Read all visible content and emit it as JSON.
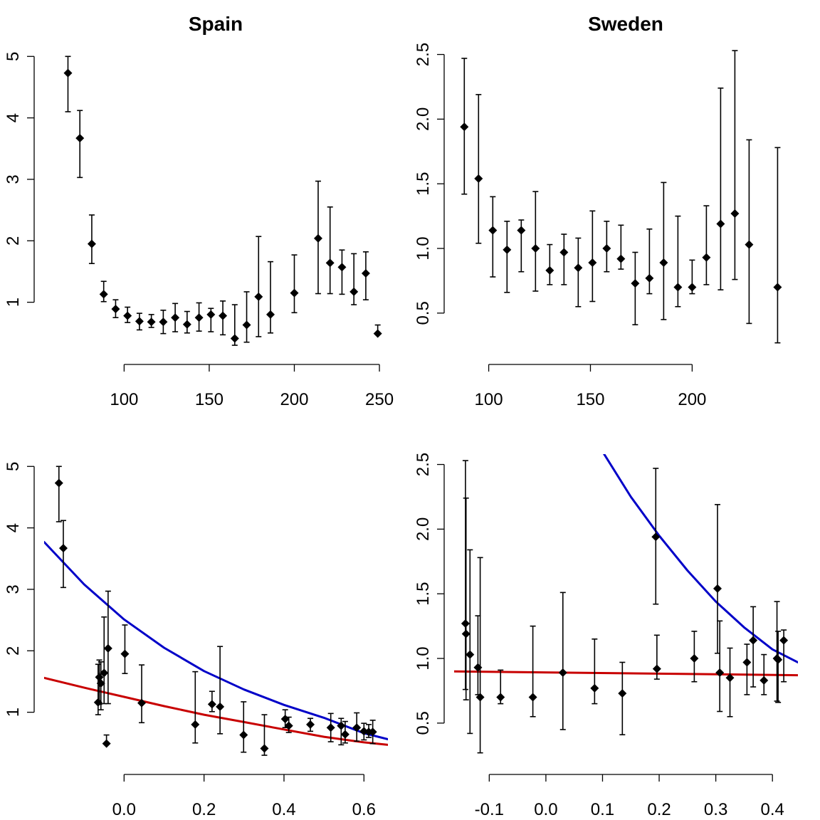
{
  "colors": {
    "blue": "#0000c8",
    "red": "#c80000",
    "points": "#000000"
  },
  "chart_data": [
    {
      "type": "scatter",
      "panel": "top-left",
      "title": "Spain",
      "xlabel": "",
      "ylabel": "",
      "xticks": [
        100,
        150,
        200,
        250
      ],
      "yticks": [
        1,
        2,
        3,
        4,
        5
      ],
      "xlim": [
        53,
        255
      ],
      "ylim": [
        0.15,
        5.2
      ],
      "points": [
        {
          "x": 67,
          "y": 4.73,
          "lo": 4.1,
          "hi": 5.0
        },
        {
          "x": 74,
          "y": 3.67,
          "lo": 3.03,
          "hi": 4.12
        },
        {
          "x": 81,
          "y": 1.95,
          "lo": 1.63,
          "hi": 2.42
        },
        {
          "x": 88,
          "y": 1.13,
          "lo": 1.01,
          "hi": 1.34
        },
        {
          "x": 95,
          "y": 0.89,
          "lo": 0.75,
          "hi": 1.04
        },
        {
          "x": 102,
          "y": 0.78,
          "lo": 0.67,
          "hi": 0.92
        },
        {
          "x": 109,
          "y": 0.69,
          "lo": 0.55,
          "hi": 0.82
        },
        {
          "x": 116,
          "y": 0.68,
          "lo": 0.59,
          "hi": 0.8
        },
        {
          "x": 123,
          "y": 0.68,
          "lo": 0.49,
          "hi": 0.87
        },
        {
          "x": 130,
          "y": 0.75,
          "lo": 0.52,
          "hi": 0.98
        },
        {
          "x": 137,
          "y": 0.64,
          "lo": 0.5,
          "hi": 0.85
        },
        {
          "x": 144,
          "y": 0.75,
          "lo": 0.53,
          "hi": 0.99
        },
        {
          "x": 151,
          "y": 0.8,
          "lo": 0.52,
          "hi": 0.9
        },
        {
          "x": 158,
          "y": 0.78,
          "lo": 0.47,
          "hi": 1.02
        },
        {
          "x": 165,
          "y": 0.41,
          "lo": 0.3,
          "hi": 0.96
        },
        {
          "x": 172,
          "y": 0.63,
          "lo": 0.35,
          "hi": 1.17
        },
        {
          "x": 179,
          "y": 1.09,
          "lo": 0.44,
          "hi": 2.07
        },
        {
          "x": 186,
          "y": 0.8,
          "lo": 0.5,
          "hi": 1.66
        },
        {
          "x": 200,
          "y": 1.15,
          "lo": 0.83,
          "hi": 1.77
        },
        {
          "x": 214,
          "y": 2.04,
          "lo": 1.14,
          "hi": 2.97
        },
        {
          "x": 221,
          "y": 1.64,
          "lo": 1.14,
          "hi": 2.55
        },
        {
          "x": 228,
          "y": 1.57,
          "lo": 1.13,
          "hi": 1.85
        },
        {
          "x": 235,
          "y": 1.17,
          "lo": 0.96,
          "hi": 1.79
        },
        {
          "x": 242,
          "y": 1.47,
          "lo": 1.04,
          "hi": 1.82
        },
        {
          "x": 249,
          "y": 0.49,
          "lo": 0.49,
          "hi": 0.63
        }
      ]
    },
    {
      "type": "scatter",
      "panel": "top-right",
      "title": "Sweden",
      "xlabel": "",
      "ylabel": "",
      "xticks": [
        100,
        150,
        200
      ],
      "yticks": [
        0.5,
        1.0,
        1.5,
        2.0,
        2.5
      ],
      "xlim": [
        83,
        252
      ],
      "ylim": [
        0.18,
        2.58
      ],
      "points": [
        {
          "x": 88,
          "y": 1.94,
          "lo": 1.42,
          "hi": 2.47
        },
        {
          "x": 95,
          "y": 1.54,
          "lo": 1.04,
          "hi": 2.19
        },
        {
          "x": 102,
          "y": 1.14,
          "lo": 0.78,
          "hi": 1.4
        },
        {
          "x": 109,
          "y": 0.99,
          "lo": 0.66,
          "hi": 1.21
        },
        {
          "x": 116,
          "y": 1.14,
          "lo": 0.82,
          "hi": 1.22
        },
        {
          "x": 123,
          "y": 1.0,
          "lo": 0.67,
          "hi": 1.44
        },
        {
          "x": 130,
          "y": 0.83,
          "lo": 0.72,
          "hi": 1.03
        },
        {
          "x": 137,
          "y": 0.97,
          "lo": 0.72,
          "hi": 1.11
        },
        {
          "x": 144,
          "y": 0.85,
          "lo": 0.55,
          "hi": 1.08
        },
        {
          "x": 151,
          "y": 0.89,
          "lo": 0.59,
          "hi": 1.29
        },
        {
          "x": 158,
          "y": 1.0,
          "lo": 0.82,
          "hi": 1.21
        },
        {
          "x": 165,
          "y": 0.92,
          "lo": 0.84,
          "hi": 1.18
        },
        {
          "x": 172,
          "y": 0.73,
          "lo": 0.41,
          "hi": 0.97
        },
        {
          "x": 179,
          "y": 0.77,
          "lo": 0.65,
          "hi": 1.15
        },
        {
          "x": 186,
          "y": 0.89,
          "lo": 0.45,
          "hi": 1.51
        },
        {
          "x": 193,
          "y": 0.7,
          "lo": 0.55,
          "hi": 1.25
        },
        {
          "x": 200,
          "y": 0.7,
          "lo": 0.65,
          "hi": 0.91
        },
        {
          "x": 207,
          "y": 0.93,
          "lo": 0.72,
          "hi": 1.33
        },
        {
          "x": 214,
          "y": 1.19,
          "lo": 0.68,
          "hi": 2.24
        },
        {
          "x": 221,
          "y": 1.27,
          "lo": 0.76,
          "hi": 2.53
        },
        {
          "x": 228,
          "y": 1.03,
          "lo": 0.42,
          "hi": 1.84
        },
        {
          "x": 242,
          "y": 0.7,
          "lo": 0.27,
          "hi": 1.78
        }
      ]
    },
    {
      "type": "scatter",
      "panel": "bottom-left",
      "title": "",
      "xlabel": "",
      "ylabel": "",
      "xticks": [
        "0.0",
        "0.2",
        "0.4",
        "0.6"
      ],
      "yticks": [
        1,
        2,
        3,
        4,
        5
      ],
      "xlim": [
        -0.2,
        0.66
      ],
      "ylim": [
        0.15,
        5.2
      ],
      "points": [
        {
          "x": -0.163,
          "y": 4.73,
          "lo": 4.1,
          "hi": 5.0
        },
        {
          "x": -0.152,
          "y": 3.67,
          "lo": 3.03,
          "hi": 4.12
        },
        {
          "x": -0.065,
          "y": 1.16,
          "lo": 0.96,
          "hi": 1.78
        },
        {
          "x": -0.062,
          "y": 1.57,
          "lo": 1.13,
          "hi": 1.85
        },
        {
          "x": -0.058,
          "y": 1.47,
          "lo": 1.04,
          "hi": 1.82
        },
        {
          "x": -0.05,
          "y": 1.64,
          "lo": 1.14,
          "hi": 2.55
        },
        {
          "x": -0.04,
          "y": 2.04,
          "lo": 1.14,
          "hi": 2.97
        },
        {
          "x": -0.044,
          "y": 0.49,
          "lo": 0.49,
          "hi": 0.63
        },
        {
          "x": 0.002,
          "y": 1.95,
          "lo": 1.63,
          "hi": 2.42
        },
        {
          "x": 0.044,
          "y": 1.15,
          "lo": 0.83,
          "hi": 1.77
        },
        {
          "x": 0.178,
          "y": 0.8,
          "lo": 0.5,
          "hi": 1.66
        },
        {
          "x": 0.22,
          "y": 1.13,
          "lo": 1.01,
          "hi": 1.34
        },
        {
          "x": 0.24,
          "y": 1.09,
          "lo": 0.65,
          "hi": 2.07
        },
        {
          "x": 0.299,
          "y": 0.63,
          "lo": 0.35,
          "hi": 1.17
        },
        {
          "x": 0.351,
          "y": 0.41,
          "lo": 0.3,
          "hi": 0.96
        },
        {
          "x": 0.403,
          "y": 0.89,
          "lo": 0.75,
          "hi": 1.04
        },
        {
          "x": 0.412,
          "y": 0.78,
          "lo": 0.67,
          "hi": 0.92
        },
        {
          "x": 0.466,
          "y": 0.8,
          "lo": 0.69,
          "hi": 0.9
        },
        {
          "x": 0.517,
          "y": 0.75,
          "lo": 0.52,
          "hi": 0.98
        },
        {
          "x": 0.543,
          "y": 0.78,
          "lo": 0.47,
          "hi": 0.9
        },
        {
          "x": 0.553,
          "y": 0.64,
          "lo": 0.5,
          "hi": 0.85
        },
        {
          "x": 0.582,
          "y": 0.75,
          "lo": 0.53,
          "hi": 0.99
        },
        {
          "x": 0.6,
          "y": 0.69,
          "lo": 0.55,
          "hi": 0.82
        },
        {
          "x": 0.612,
          "y": 0.68,
          "lo": 0.59,
          "hi": 0.8
        },
        {
          "x": 0.622,
          "y": 0.68,
          "lo": 0.49,
          "hi": 0.87
        }
      ],
      "curves": [
        {
          "color": "blue",
          "x": [
            -0.2,
            -0.1,
            0.0,
            0.1,
            0.2,
            0.3,
            0.4,
            0.5,
            0.6,
            0.66
          ],
          "y": [
            3.77,
            3.08,
            2.51,
            2.05,
            1.67,
            1.37,
            1.12,
            0.91,
            0.66,
            0.56
          ]
        },
        {
          "color": "red",
          "x": [
            -0.2,
            -0.1,
            0.0,
            0.1,
            0.2,
            0.3,
            0.4,
            0.5,
            0.6,
            0.66
          ],
          "y": [
            1.56,
            1.4,
            1.25,
            1.1,
            0.96,
            0.84,
            0.72,
            0.6,
            0.51,
            0.47
          ]
        }
      ]
    },
    {
      "type": "scatter",
      "panel": "bottom-right",
      "title": "",
      "xlabel": "",
      "ylabel": "",
      "xticks": [
        "-0.1",
        "0.0",
        "0.1",
        "0.2",
        "0.3",
        "0.4"
      ],
      "yticks": [
        0.5,
        1.0,
        1.5,
        2.0,
        2.5
      ],
      "xlim": [
        -0.162,
        0.445
      ],
      "ylim": [
        0.18,
        2.58
      ],
      "points": [
        {
          "x": -0.142,
          "y": 1.27,
          "lo": 0.76,
          "hi": 2.53
        },
        {
          "x": -0.141,
          "y": 1.19,
          "lo": 0.68,
          "hi": 2.24
        },
        {
          "x": -0.134,
          "y": 1.03,
          "lo": 0.42,
          "hi": 1.84
        },
        {
          "x": -0.12,
          "y": 0.93,
          "lo": 0.72,
          "hi": 1.33
        },
        {
          "x": -0.116,
          "y": 0.7,
          "lo": 0.27,
          "hi": 1.78
        },
        {
          "x": -0.08,
          "y": 0.7,
          "lo": 0.65,
          "hi": 0.91
        },
        {
          "x": -0.023,
          "y": 0.7,
          "lo": 0.55,
          "hi": 1.25
        },
        {
          "x": 0.03,
          "y": 0.89,
          "lo": 0.45,
          "hi": 1.51
        },
        {
          "x": 0.086,
          "y": 0.77,
          "lo": 0.65,
          "hi": 1.15
        },
        {
          "x": 0.135,
          "y": 0.73,
          "lo": 0.41,
          "hi": 0.97
        },
        {
          "x": 0.194,
          "y": 1.94,
          "lo": 1.42,
          "hi": 2.47
        },
        {
          "x": 0.196,
          "y": 0.92,
          "lo": 0.84,
          "hi": 1.18
        },
        {
          "x": 0.262,
          "y": 1.0,
          "lo": 0.82,
          "hi": 1.21
        },
        {
          "x": 0.303,
          "y": 1.54,
          "lo": 1.04,
          "hi": 2.19
        },
        {
          "x": 0.307,
          "y": 0.89,
          "lo": 0.59,
          "hi": 1.29
        },
        {
          "x": 0.325,
          "y": 0.85,
          "lo": 0.55,
          "hi": 1.08
        },
        {
          "x": 0.355,
          "y": 0.97,
          "lo": 0.72,
          "hi": 1.11
        },
        {
          "x": 0.366,
          "y": 1.14,
          "lo": 0.78,
          "hi": 1.4
        },
        {
          "x": 0.385,
          "y": 0.83,
          "lo": 0.72,
          "hi": 1.03
        },
        {
          "x": 0.408,
          "y": 1.0,
          "lo": 0.67,
          "hi": 1.44
        },
        {
          "x": 0.41,
          "y": 0.99,
          "lo": 0.66,
          "hi": 1.21
        },
        {
          "x": 0.42,
          "y": 1.14,
          "lo": 0.82,
          "hi": 1.22
        }
      ],
      "curves": [
        {
          "color": "blue",
          "x": [
            0.1,
            0.15,
            0.2,
            0.25,
            0.3,
            0.35,
            0.4,
            0.445
          ],
          "y": [
            2.6,
            2.25,
            1.95,
            1.68,
            1.44,
            1.24,
            1.07,
            0.97
          ]
        },
        {
          "color": "red",
          "x": [
            -0.162,
            0.445
          ],
          "y": [
            0.9,
            0.87
          ]
        }
      ]
    }
  ]
}
